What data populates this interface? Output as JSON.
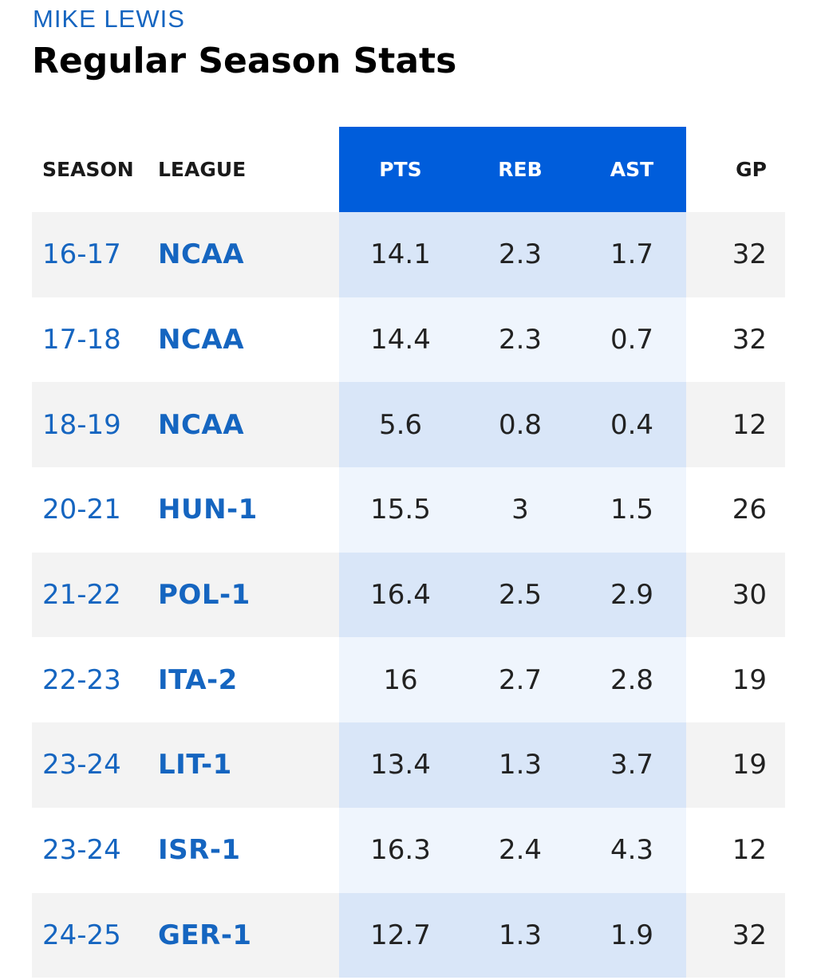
{
  "player": {
    "name": "MIKE LEWIS"
  },
  "page": {
    "title": "Regular Season Stats"
  },
  "table": {
    "headers": {
      "season": "SEASON",
      "league": "LEAGUE",
      "pts": "PTS",
      "reb": "REB",
      "ast": "AST",
      "gp": "GP"
    },
    "rows": [
      {
        "season": "16-17",
        "league": "NCAA",
        "pts": "14.1",
        "reb": "2.3",
        "ast": "1.7",
        "gp": "32"
      },
      {
        "season": "17-18",
        "league": "NCAA",
        "pts": "14.4",
        "reb": "2.3",
        "ast": "0.7",
        "gp": "32"
      },
      {
        "season": "18-19",
        "league": "NCAA",
        "pts": "5.6",
        "reb": "0.8",
        "ast": "0.4",
        "gp": "12"
      },
      {
        "season": "20-21",
        "league": "HUN-1",
        "pts": "15.5",
        "reb": "3",
        "ast": "1.5",
        "gp": "26"
      },
      {
        "season": "21-22",
        "league": "POL-1",
        "pts": "16.4",
        "reb": "2.5",
        "ast": "2.9",
        "gp": "30"
      },
      {
        "season": "22-23",
        "league": "ITA-2",
        "pts": "16",
        "reb": "2.7",
        "ast": "2.8",
        "gp": "19"
      },
      {
        "season": "23-24",
        "league": "LIT-1",
        "pts": "13.4",
        "reb": "1.3",
        "ast": "3.7",
        "gp": "19"
      },
      {
        "season": "23-24",
        "league": "ISR-1",
        "pts": "16.3",
        "reb": "2.4",
        "ast": "4.3",
        "gp": "12"
      },
      {
        "season": "24-25",
        "league": "GER-1",
        "pts": "12.7",
        "reb": "1.3",
        "ast": "1.9",
        "gp": "32"
      }
    ]
  },
  "colors": {
    "accent": "#005ddb",
    "link_text": "#1565c0",
    "odd_row_bg": "#f3f3f3",
    "odd_highlight_bg": "#d9e6f8",
    "even_highlight_bg": "#eff5fd"
  }
}
